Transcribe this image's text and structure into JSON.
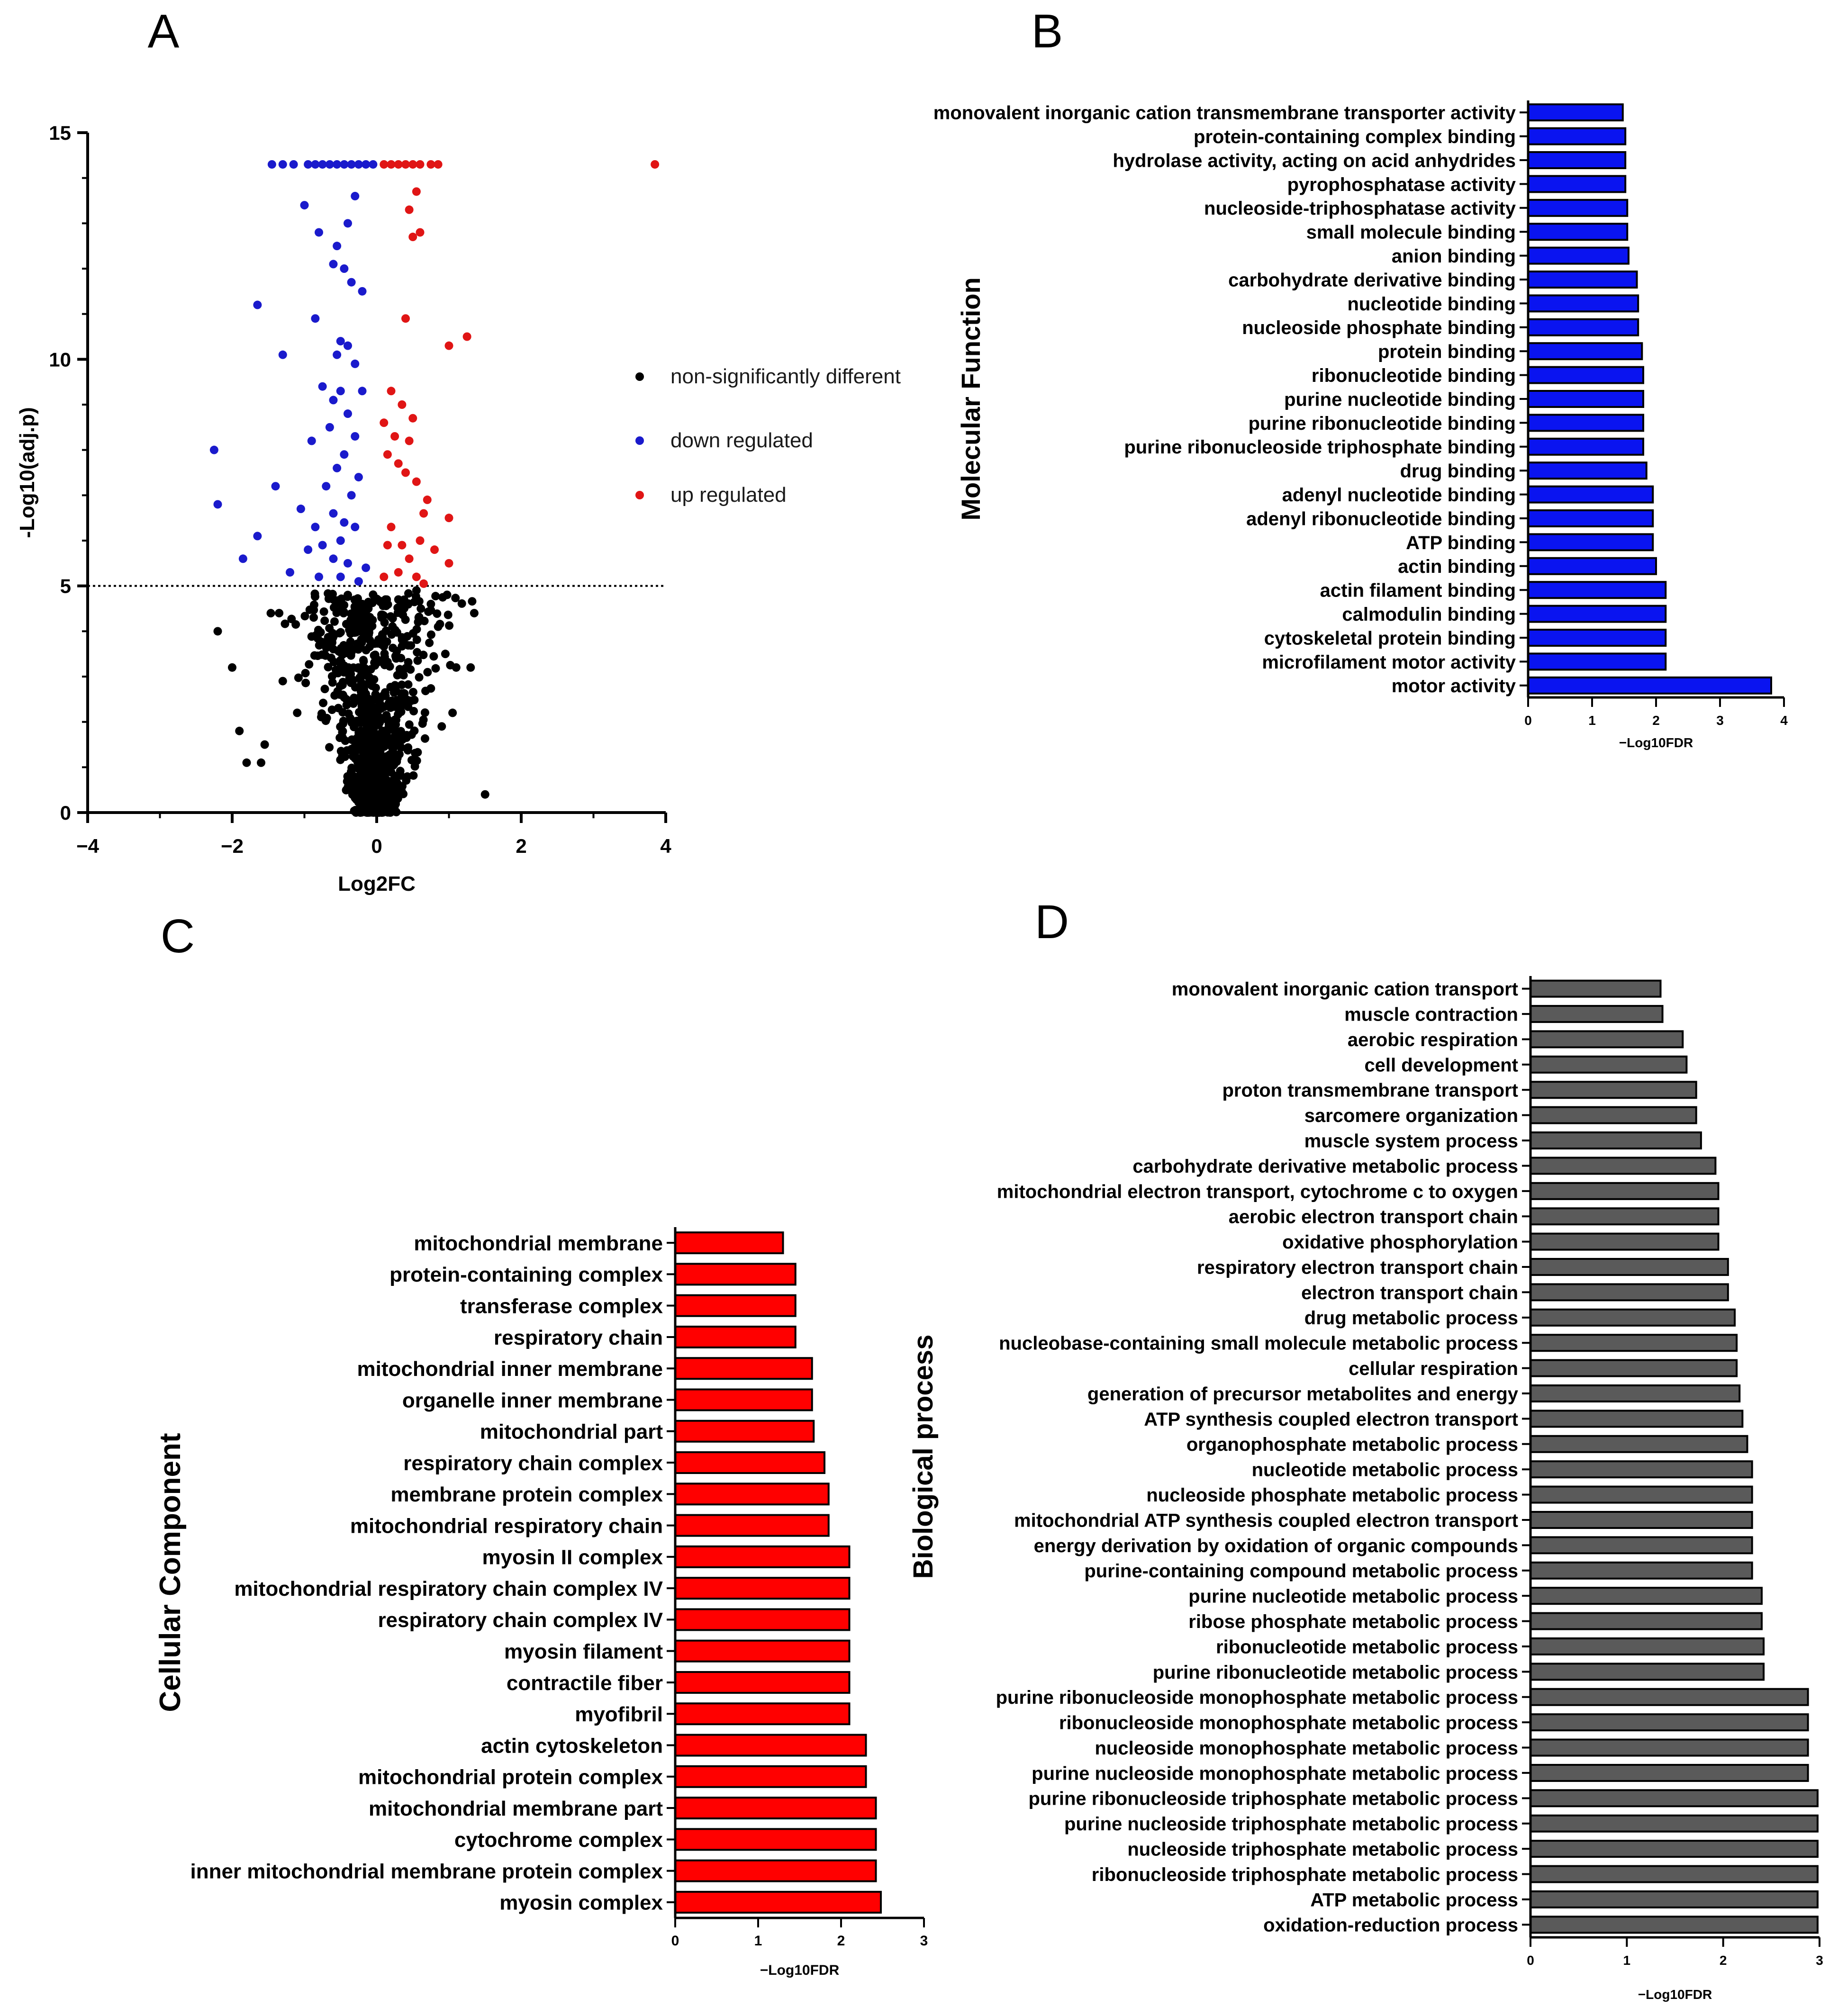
{
  "chart_data": [
    {
      "panel": "A",
      "type": "scatter",
      "title": "",
      "xlabel": "Log2FC",
      "ylabel": "-Log10(adj.p)",
      "xlim": [
        -4,
        4
      ],
      "ylim": [
        0,
        15
      ],
      "xticks": [
        "−4",
        "−2",
        "0",
        "2",
        "4"
      ],
      "yticks": [
        "0",
        "5",
        "10",
        "15"
      ],
      "threshold_y": 5,
      "grid": false,
      "legend": [
        {
          "label": "non-significantly different",
          "color": "#000000"
        },
        {
          "label": "down regulated",
          "color": "#1a1acc"
        },
        {
          "label": "up regulated",
          "color": "#e01515"
        }
      ],
      "series": [
        {
          "name": "down regulated",
          "color": "#1a1acc",
          "points": [
            [
              -1.45,
              14.3
            ],
            [
              -1.3,
              14.3
            ],
            [
              -1.15,
              14.3
            ],
            [
              -0.95,
              14.3
            ],
            [
              -0.85,
              14.3
            ],
            [
              -0.75,
              14.3
            ],
            [
              -0.65,
              14.3
            ],
            [
              -0.55,
              14.3
            ],
            [
              -0.45,
              14.3
            ],
            [
              -0.35,
              14.3
            ],
            [
              -0.25,
              14.3
            ],
            [
              -0.15,
              14.3
            ],
            [
              -0.05,
              14.3
            ],
            [
              -1.0,
              13.4
            ],
            [
              -0.4,
              13.0
            ],
            [
              -0.3,
              13.6
            ],
            [
              -0.8,
              12.8
            ],
            [
              -0.55,
              12.5
            ],
            [
              -0.6,
              12.1
            ],
            [
              -0.45,
              12.0
            ],
            [
              -0.35,
              11.7
            ],
            [
              -0.2,
              11.5
            ],
            [
              -1.65,
              11.2
            ],
            [
              -0.85,
              10.9
            ],
            [
              -0.5,
              10.4
            ],
            [
              -0.4,
              10.3
            ],
            [
              -0.55,
              10.1
            ],
            [
              -1.3,
              10.1
            ],
            [
              -0.3,
              9.9
            ],
            [
              -0.75,
              9.4
            ],
            [
              -0.6,
              9.1
            ],
            [
              -0.5,
              9.3
            ],
            [
              -0.2,
              9.3
            ],
            [
              -0.4,
              8.8
            ],
            [
              -0.65,
              8.5
            ],
            [
              -0.3,
              8.3
            ],
            [
              -2.25,
              8.0
            ],
            [
              -0.9,
              8.2
            ],
            [
              -0.45,
              7.9
            ],
            [
              -0.55,
              7.6
            ],
            [
              -0.25,
              7.4
            ],
            [
              -1.4,
              7.2
            ],
            [
              -0.7,
              7.2
            ],
            [
              -0.35,
              7.0
            ],
            [
              -2.2,
              6.8
            ],
            [
              -1.05,
              6.7
            ],
            [
              -0.6,
              6.6
            ],
            [
              -0.45,
              6.4
            ],
            [
              -0.85,
              6.3
            ],
            [
              -0.3,
              6.3
            ],
            [
              -0.5,
              6.0
            ],
            [
              -1.65,
              6.1
            ],
            [
              -0.75,
              5.9
            ],
            [
              -0.95,
              5.8
            ],
            [
              -1.85,
              5.6
            ],
            [
              -0.6,
              5.6
            ],
            [
              -0.4,
              5.5
            ],
            [
              -1.2,
              5.3
            ],
            [
              -0.15,
              5.4
            ],
            [
              -0.8,
              5.2
            ],
            [
              -0.5,
              5.2
            ],
            [
              -0.25,
              5.1
            ]
          ]
        },
        {
          "name": "up regulated",
          "color": "#e01515",
          "points": [
            [
              3.85,
              14.3
            ],
            [
              0.1,
              14.3
            ],
            [
              0.2,
              14.3
            ],
            [
              0.3,
              14.3
            ],
            [
              0.4,
              14.3
            ],
            [
              0.5,
              14.3
            ],
            [
              0.6,
              14.3
            ],
            [
              0.75,
              14.3
            ],
            [
              0.85,
              14.3
            ],
            [
              0.55,
              13.7
            ],
            [
              0.45,
              13.3
            ],
            [
              0.6,
              12.8
            ],
            [
              0.5,
              12.7
            ],
            [
              0.4,
              10.9
            ],
            [
              1.25,
              10.5
            ],
            [
              1.0,
              10.3
            ],
            [
              0.2,
              9.3
            ],
            [
              0.35,
              9.0
            ],
            [
              0.5,
              8.7
            ],
            [
              0.1,
              8.6
            ],
            [
              0.25,
              8.3
            ],
            [
              0.45,
              8.2
            ],
            [
              0.15,
              7.9
            ],
            [
              0.3,
              7.7
            ],
            [
              0.4,
              7.5
            ],
            [
              0.55,
              7.3
            ],
            [
              0.7,
              6.9
            ],
            [
              0.65,
              6.6
            ],
            [
              0.2,
              6.3
            ],
            [
              1.0,
              6.5
            ],
            [
              0.6,
              6.0
            ],
            [
              0.35,
              5.9
            ],
            [
              0.15,
              5.9
            ],
            [
              0.45,
              5.6
            ],
            [
              0.8,
              5.8
            ],
            [
              1.0,
              5.5
            ],
            [
              0.3,
              5.3
            ],
            [
              0.55,
              5.2
            ],
            [
              0.1,
              5.2
            ],
            [
              0.65,
              5.05
            ]
          ]
        },
        {
          "name": "non-significantly different",
          "color": "#000000",
          "points": [
            [
              -2.2,
              4.0
            ],
            [
              -2.0,
              3.2
            ],
            [
              -1.9,
              1.8
            ],
            [
              -1.8,
              1.1
            ],
            [
              -1.6,
              1.1
            ],
            [
              -1.55,
              1.5
            ],
            [
              -1.35,
              4.4
            ],
            [
              -1.3,
              2.9
            ],
            [
              -1.1,
              2.2
            ],
            [
              1.35,
              4.4
            ],
            [
              1.1,
              3.2
            ],
            [
              1.3,
              3.2
            ],
            [
              1.5,
              0.4
            ],
            [
              0.85,
              4.1
            ],
            [
              0.95,
              3.5
            ],
            [
              1.05,
              2.2
            ],
            [
              0.9,
              1.9
            ],
            [
              -0.6,
              4.7
            ],
            [
              -0.4,
              4.8
            ],
            [
              -0.2,
              4.6
            ],
            [
              0.3,
              4.7
            ],
            [
              0.55,
              4.9
            ],
            [
              0.75,
              4.6
            ]
          ]
        }
      ]
    },
    {
      "panel": "B",
      "type": "bar",
      "orientation": "horizontal",
      "ylabel": "Molecular Function",
      "xlabel": "−Log10FDR",
      "xlim": [
        0,
        4
      ],
      "xticks": [
        "0",
        "1",
        "2",
        "3",
        "4"
      ],
      "color": "#0a14f0",
      "categories": [
        "monovalent inorganic cation transmembrane transporter activity",
        "protein-containing complex binding",
        "hydrolase activity, acting on acid anhydrides",
        "pyrophosphatase activity",
        "nucleoside-triphosphatase activity",
        "small molecule binding",
        "anion binding",
        "carbohydrate derivative binding",
        "nucleotide binding",
        "nucleoside phosphate binding",
        "protein binding",
        "ribonucleotide binding",
        "purine nucleotide binding",
        "purine ribonucleotide binding",
        "purine ribonucleoside triphosphate binding",
        "drug binding",
        "adenyl nucleotide binding",
        "adenyl ribonucleotide binding",
        "ATP binding",
        "actin binding",
        "actin filament binding",
        "calmodulin binding",
        "cytoskeletal protein binding",
        "microfilament motor activity",
        "motor activity"
      ],
      "values": [
        1.48,
        1.52,
        1.52,
        1.52,
        1.55,
        1.55,
        1.57,
        1.7,
        1.72,
        1.72,
        1.78,
        1.8,
        1.8,
        1.8,
        1.8,
        1.85,
        1.95,
        1.95,
        1.95,
        2.0,
        2.15,
        2.15,
        2.15,
        2.15,
        3.8
      ]
    },
    {
      "panel": "C",
      "type": "bar",
      "orientation": "horizontal",
      "ylabel": "Cellular Component",
      "xlabel": "−Log10FDR",
      "xlim": [
        0,
        3
      ],
      "xticks": [
        "0",
        "1",
        "2",
        "3"
      ],
      "color": "#ff0000",
      "categories": [
        "mitochondrial membrane",
        "protein-containing complex",
        "transferase complex",
        "respiratory chain",
        "mitochondrial inner membrane",
        "organelle inner membrane",
        "mitochondrial part",
        "respiratory chain complex",
        "membrane protein complex",
        "mitochondrial respiratory chain",
        "myosin II complex",
        "mitochondrial respiratory chain complex IV",
        "respiratory chain complex IV",
        "myosin filament",
        "contractile fiber",
        "myofibril",
        "actin cytoskeleton",
        "mitochondrial protein complex",
        "mitochondrial membrane part",
        "cytochrome complex",
        "inner mitochondrial membrane protein complex",
        "myosin complex"
      ],
      "values": [
        1.3,
        1.45,
        1.45,
        1.45,
        1.65,
        1.65,
        1.67,
        1.8,
        1.85,
        1.85,
        2.1,
        2.1,
        2.1,
        2.1,
        2.1,
        2.1,
        2.3,
        2.3,
        2.42,
        2.42,
        2.42,
        2.48
      ]
    },
    {
      "panel": "D",
      "type": "bar",
      "orientation": "horizontal",
      "ylabel": "Biological process",
      "xlabel": "−Log10FDR",
      "xlim": [
        0,
        3
      ],
      "xticks": [
        "0",
        "1",
        "2",
        "3"
      ],
      "color": "#5a5a5a",
      "categories": [
        "monovalent inorganic cation transport",
        "muscle contraction",
        "aerobic respiration",
        "cell development",
        "proton transmembrane transport",
        "sarcomere organization",
        "muscle system process",
        "carbohydrate derivative metabolic process",
        "mitochondrial electron transport, cytochrome c to oxygen",
        "aerobic electron transport chain",
        "oxidative phosphorylation",
        "respiratory electron transport chain",
        "electron transport chain",
        "drug metabolic process",
        "nucleobase-containing small molecule metabolic process",
        "cellular respiration",
        "generation of precursor metabolites and energy",
        "ATP synthesis coupled electron transport",
        "organophosphate metabolic process",
        "nucleotide metabolic process",
        "nucleoside phosphate metabolic process",
        "mitochondrial ATP synthesis coupled electron transport",
        "energy derivation by oxidation of organic compounds",
        "purine-containing compound metabolic process",
        "purine nucleotide metabolic process",
        "ribose phosphate metabolic process",
        "ribonucleotide metabolic process",
        "purine ribonucleotide metabolic process",
        "purine ribonucleoside monophosphate metabolic process",
        "ribonucleoside monophosphate metabolic process",
        "nucleoside monophosphate metabolic process",
        "purine nucleoside monophosphate metabolic process",
        "purine ribonucleoside triphosphate metabolic process",
        "purine nucleoside triphosphate metabolic process",
        "nucleoside triphosphate metabolic process",
        "ribonucleoside triphosphate metabolic process",
        "ATP metabolic process",
        "oxidation-reduction process"
      ],
      "values": [
        1.35,
        1.37,
        1.58,
        1.62,
        1.72,
        1.72,
        1.77,
        1.92,
        1.95,
        1.95,
        1.95,
        2.05,
        2.05,
        2.12,
        2.14,
        2.14,
        2.17,
        2.2,
        2.25,
        2.3,
        2.3,
        2.3,
        2.3,
        2.3,
        2.4,
        2.4,
        2.42,
        2.42,
        2.88,
        2.88,
        2.88,
        2.88,
        2.98,
        2.98,
        2.98,
        2.98,
        2.98,
        2.98
      ]
    }
  ],
  "panel_labels": {
    "A": "A",
    "B": "B",
    "C": "C",
    "D": "D"
  }
}
